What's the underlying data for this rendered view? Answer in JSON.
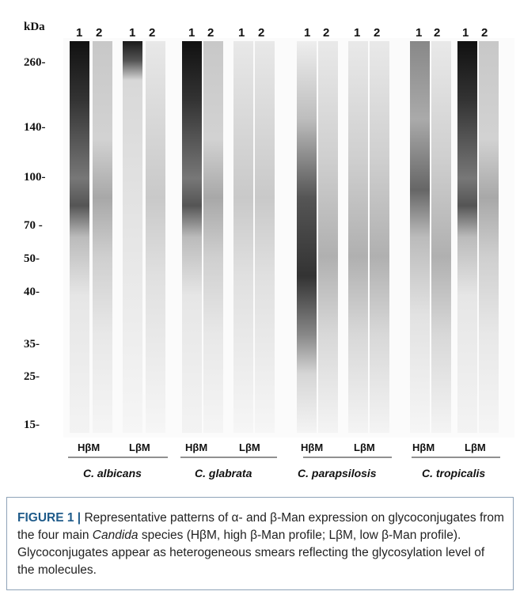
{
  "figure": {
    "kda_label": "kDa",
    "markers": [
      "260-",
      "140-",
      "100-",
      "70 -",
      "50-",
      "40-",
      "35-",
      "25-",
      "15-"
    ],
    "lane_number_1": "1",
    "lane_number_2": "2",
    "group_high": "HβM",
    "group_low": "LβM",
    "species": [
      "C. albicans",
      "C. glabrata",
      "C. parapsilosis",
      "C. tropicalis"
    ]
  },
  "caption": {
    "label": "FIGURE 1 |",
    "part1": " Representative patterns of α- and β-Man expression on glycoconjugates from the four main ",
    "genus": "Candida",
    "part2": " species (HβM, high β-Man profile; LβM, low β-Man profile). Glycoconjugates appear as heterogeneous smears reflecting the glycosylation level of the molecules."
  }
}
